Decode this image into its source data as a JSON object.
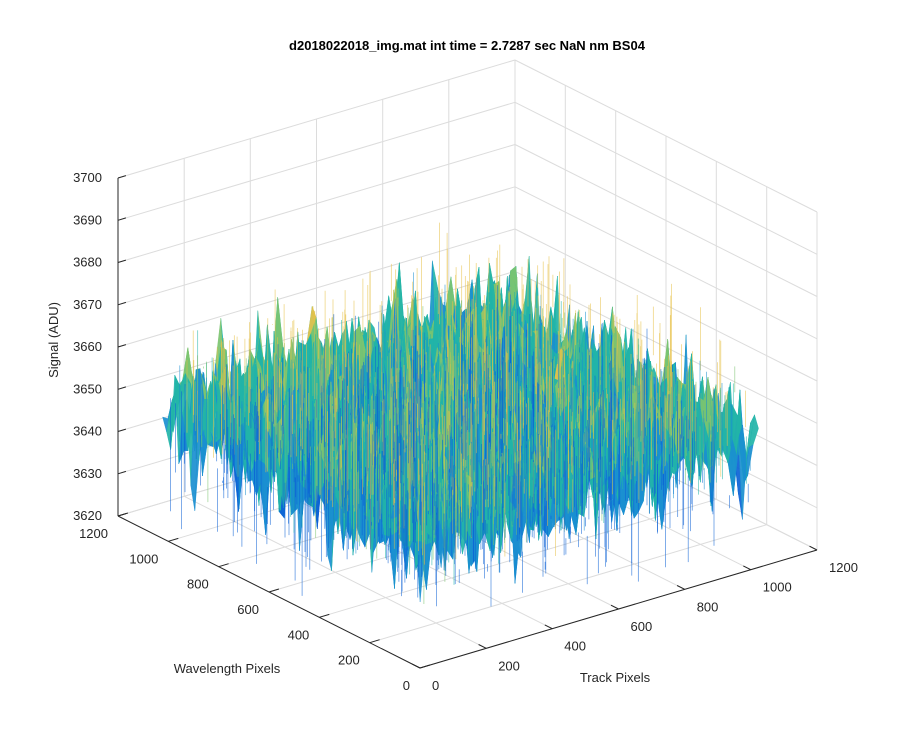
{
  "chart_data": {
    "type": "surface",
    "title": "d2018022018_img.mat int time = 2.7287 sec  NaN nm BS04",
    "xlabel": "Track Pixels",
    "ylabel": "Wavelength Pixels",
    "zlabel": "Signal (ADU)",
    "xlim": [
      0,
      1200
    ],
    "ylim": [
      0,
      1200
    ],
    "zlim": [
      3620,
      3700
    ],
    "x_ticks": [
      "0",
      "200",
      "400",
      "600",
      "800",
      "1000",
      "1200"
    ],
    "y_ticks": [
      "0",
      "200",
      "400",
      "600",
      "800",
      "1000",
      "1200"
    ],
    "z_ticks": [
      "3620",
      "3630",
      "3640",
      "3650",
      "3660",
      "3670",
      "3680",
      "3690",
      "3700"
    ],
    "surface_extent": {
      "x": [
        1,
        1024
      ],
      "y": [
        1,
        1024
      ]
    },
    "signal_mean": 3650,
    "signal_spread_typical": [
      3630,
      3675
    ],
    "signal_extremes_approx": [
      3615,
      3695
    ],
    "grid": true,
    "colormap": "parula",
    "colors": {
      "low": "#0c62d6",
      "mid_low": "#1a8fd0",
      "mid": "#22b4a8",
      "mid_high": "#7cc470",
      "high": "#e7c24a"
    }
  }
}
